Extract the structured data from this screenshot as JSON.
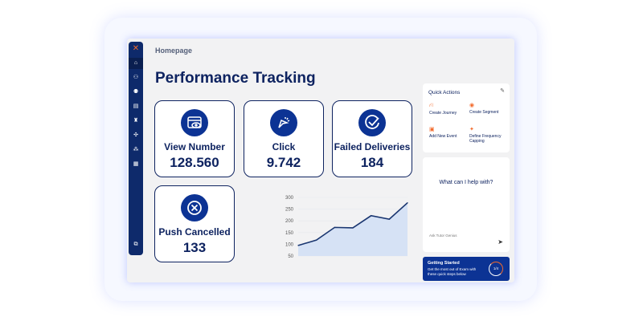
{
  "breadcrumb": "Homepage",
  "page_title": "Performance Tracking",
  "cards": [
    {
      "label": "View Number",
      "value": "128.560",
      "icon": "browser-eye-icon"
    },
    {
      "label": "Click",
      "value": "9.742",
      "icon": "cursor-click-icon"
    },
    {
      "label": "Failed Deliveries",
      "value": "184",
      "icon": "check-circle-icon"
    },
    {
      "label": "Push Cancelled",
      "value": "133",
      "icon": "x-circle-icon"
    }
  ],
  "quick_actions": {
    "title": "Quick Actions",
    "items": [
      "Create Journey",
      "Create Segment",
      "Add New Event",
      "Define Frequency Capping"
    ]
  },
  "chat": {
    "prompt": "What can I help with?",
    "placeholder": "Ask Tutor Genius"
  },
  "getting_started": {
    "title": "Getting Started",
    "text": "Get the most out of Exam with these quick steps below",
    "progress": "1/4"
  },
  "chart_data": {
    "type": "area",
    "y_ticks": [
      "300",
      "250",
      "200",
      "150",
      "100",
      "50"
    ],
    "ylim": [
      50,
      300
    ],
    "values": [
      95,
      118,
      172,
      170,
      222,
      207,
      277
    ]
  }
}
